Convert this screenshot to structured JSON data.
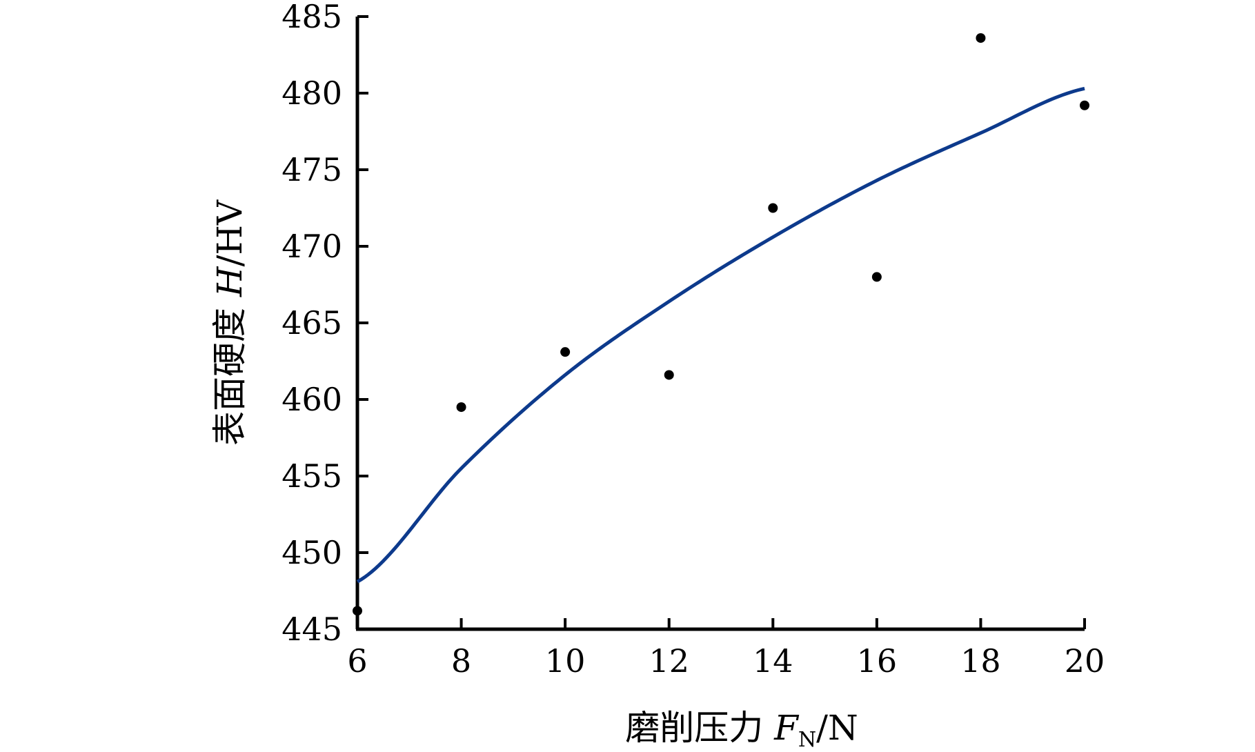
{
  "chart_data": {
    "type": "scatter",
    "title": "",
    "xlabel": {
      "main": "磨削压力 ",
      "symbol": "F",
      "subscript": "N",
      "unit": "/N"
    },
    "ylabel": {
      "main": "表面硬度 ",
      "symbol": "H",
      "unit": "/HV"
    },
    "xlim": [
      6,
      20
    ],
    "ylim": [
      445,
      485
    ],
    "x_ticks": [
      6,
      8,
      10,
      12,
      14,
      16,
      18,
      20
    ],
    "y_ticks": [
      445,
      450,
      455,
      460,
      465,
      470,
      475,
      480,
      485
    ],
    "grid": false,
    "legend": "none",
    "series": [
      {
        "kind": "points",
        "color": "#000000",
        "x": [
          6,
          8,
          10,
          12,
          14,
          16,
          18,
          20
        ],
        "y": [
          446.2,
          459.5,
          463.1,
          461.6,
          472.5,
          468.0,
          483.6,
          479.2
        ]
      },
      {
        "kind": "fit-curve",
        "color": "#0d3a8c",
        "x": [
          6,
          8,
          10,
          12,
          14,
          16,
          18,
          20
        ],
        "y": [
          448.1,
          455.5,
          461.6,
          466.4,
          470.6,
          474.3,
          477.4,
          480.3
        ]
      }
    ]
  }
}
